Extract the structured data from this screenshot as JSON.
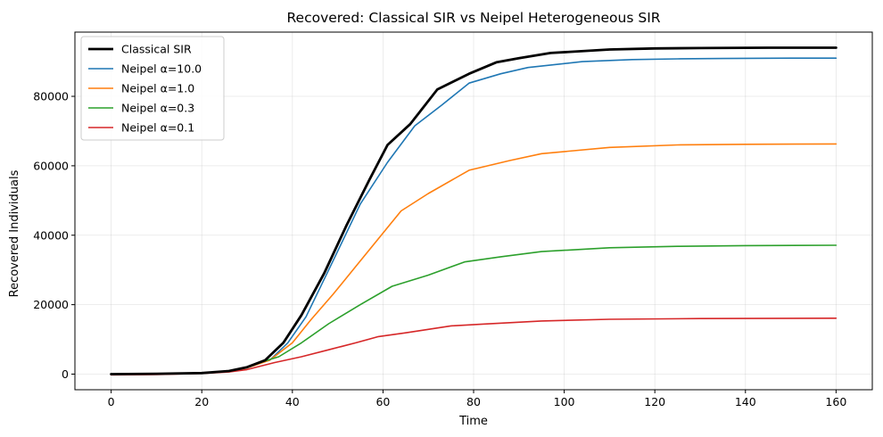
{
  "chart_data": {
    "type": "line",
    "title": "Recovered: Classical SIR vs Neipel Heterogeneous SIR",
    "xlabel": "Time",
    "ylabel": "Recovered Individuals",
    "xlim": [
      -8,
      168
    ],
    "ylim": [
      -4500,
      98500
    ],
    "xticks": [
      0,
      20,
      40,
      60,
      80,
      100,
      120,
      140,
      160
    ],
    "yticks": [
      0,
      20000,
      40000,
      60000,
      80000
    ],
    "grid": true,
    "legend_position": "top-left",
    "series": [
      {
        "name": "Classical SIR",
        "color": "#000000",
        "width": 2.8,
        "x": [
          0,
          10,
          20,
          26,
          30,
          34,
          38,
          42,
          47,
          52,
          57,
          61,
          66,
          72,
          79,
          85,
          90,
          97,
          110,
          120,
          130,
          145,
          160
        ],
        "y": [
          0,
          100,
          300,
          900,
          2000,
          4000,
          9000,
          17000,
          29000,
          43000,
          56000,
          66000,
          72000,
          82000,
          86500,
          89800,
          91000,
          92500,
          93500,
          93800,
          93900,
          94000,
          94000
        ]
      },
      {
        "name": "Neipel α=10.0",
        "color": "#1f77b4",
        "width": 1.6,
        "x": [
          0,
          10,
          20,
          26,
          30,
          35,
          39,
          43,
          48,
          55,
          61,
          67,
          73,
          79,
          86,
          92,
          104,
          115,
          125,
          135,
          150,
          160
        ],
        "y": [
          0,
          100,
          300,
          800,
          2000,
          4000,
          9000,
          16500,
          30000,
          49000,
          61000,
          71500,
          77500,
          83800,
          86500,
          88300,
          90000,
          90600,
          90800,
          90900,
          91000,
          91000
        ]
      },
      {
        "name": "Neipel α=1.0",
        "color": "#ff7f0e",
        "width": 1.6,
        "x": [
          0,
          10,
          20,
          26,
          30,
          35,
          40,
          44,
          49,
          54,
          59,
          64,
          70,
          79,
          88,
          95,
          110,
          125,
          140,
          160
        ],
        "y": [
          0,
          100,
          300,
          700,
          1800,
          4000,
          9000,
          15500,
          23000,
          31000,
          39000,
          47000,
          52000,
          58700,
          61500,
          63500,
          65300,
          66000,
          66200,
          66300
        ]
      },
      {
        "name": "Neipel α=0.3",
        "color": "#2ca02c",
        "width": 1.6,
        "x": [
          0,
          10,
          20,
          26,
          30,
          34,
          37,
          42,
          48,
          55,
          62,
          70,
          78,
          86,
          95,
          110,
          125,
          140,
          160
        ],
        "y": [
          0,
          100,
          300,
          900,
          2000,
          3800,
          5000,
          9000,
          14500,
          20000,
          25300,
          28500,
          32300,
          33800,
          35300,
          36400,
          36800,
          37000,
          37100
        ]
      },
      {
        "name": "Neipel α=0.1",
        "color": "#d62728",
        "width": 1.6,
        "x": [
          0,
          10,
          20,
          26,
          30,
          36,
          42,
          48,
          54,
          59,
          65,
          70,
          75,
          82,
          95,
          110,
          130,
          160
        ],
        "y": [
          -200,
          -100,
          200,
          600,
          1300,
          3300,
          5000,
          7000,
          9000,
          10800,
          11900,
          12900,
          13900,
          14400,
          15300,
          15800,
          16000,
          16100
        ]
      }
    ]
  }
}
